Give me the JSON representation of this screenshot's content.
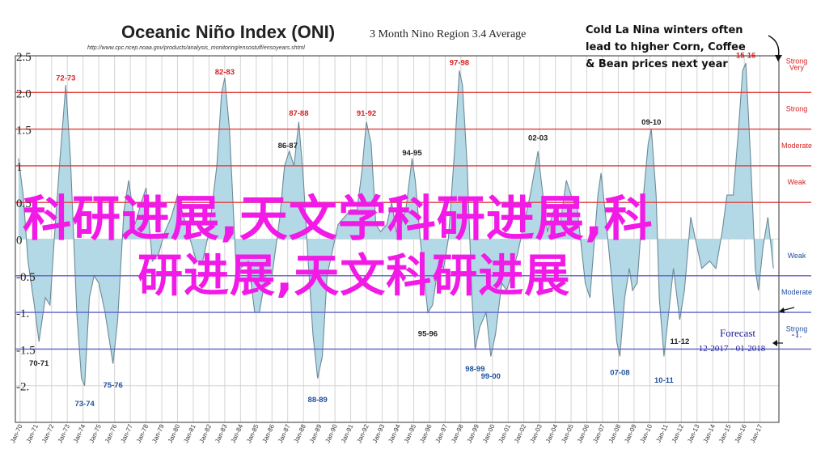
{
  "header": {
    "title": "Oceanic Niño Index (ONI)",
    "subtitle": "3 Month Nino Region 3.4 Average",
    "source_url": "http://www.cpc.ncep.noaa.gov/products/analysis_monitoring/ensostuff/ensoyears.shtml"
  },
  "callout": {
    "lines": [
      "Cold La Nina winters often",
      "lead to higher Corn, Coffee",
      "& Bean prices next year"
    ]
  },
  "watermark": {
    "line1": "科研进展,天文学科研进展,科",
    "line2": "研进展,天文科研进展"
  },
  "colors": {
    "area_fill": "#b3d9e6",
    "area_stroke": "#6d8a96",
    "el_nino_lines": "#e03c3c",
    "la_nina_lines": "#6060d0",
    "annotation_red": "#d82020",
    "annotation_blue": "#2050a0",
    "forecast": "#1a1aa0",
    "watermark": "#f21ae6"
  },
  "chart_data": {
    "type": "area",
    "title": "Oceanic Niño Index (ONI)",
    "y_axis": {
      "ylim": [
        -2.5,
        2.5
      ],
      "tick_labels": [
        "2.5",
        "2.0",
        "1.5",
        "1",
        "0.5",
        "0",
        "-0.5",
        "-1.",
        "-1.5",
        "-2."
      ]
    },
    "x_axis": {
      "xlim": [
        1969.7,
        2018.2
      ],
      "tick_labels": [
        "Jan-70",
        "Jan-71",
        "Jan-72",
        "Jan-73",
        "Jan-74",
        "Jan-75",
        "Jan-76",
        "Jan-77",
        "Jan-78",
        "Jan-79",
        "Jan-80",
        "Jan-81",
        "Jan-82",
        "Jan-83",
        "Jan-84",
        "Jan-85",
        "Jan-86",
        "Jan-87",
        "Jan-88",
        "Jan-89",
        "Jan-90",
        "Jan-91",
        "Jan-92",
        "Jan-93",
        "Jan-94",
        "Jan-95",
        "Jan-96",
        "Jan-97",
        "Jan-98",
        "Jan-99",
        "Jan-00",
        "Jan-01",
        "Jan-02",
        "Jan-03",
        "Jan-04",
        "Jan-05",
        "Jan-06",
        "Jan-07",
        "Jan-08",
        "Jan-09",
        "Jan-10",
        "Jan-11",
        "Jan-12",
        "Jan-13",
        "Jan-14",
        "Jan-15",
        "Jan-16",
        "Jan-17"
      ]
    },
    "thresholds": [
      {
        "value": 2.0,
        "label": "Very\nStrong",
        "kind": "el_nino"
      },
      {
        "value": 1.5,
        "label": "Strong",
        "kind": "el_nino"
      },
      {
        "value": 1.0,
        "label": "Moderate",
        "kind": "el_nino"
      },
      {
        "value": 0.5,
        "label": "Weak",
        "kind": "el_nino"
      },
      {
        "value": -0.5,
        "label": "Weak",
        "kind": "la_nina"
      },
      {
        "value": -1.0,
        "label": "Moderate",
        "kind": "la_nina"
      },
      {
        "value": -1.5,
        "label": "Strong",
        "kind": "la_nina"
      }
    ],
    "series": [
      {
        "values": [
          [
            1969.9,
            1.1
          ],
          [
            1970.2,
            0.6
          ],
          [
            1970.5,
            -0.3
          ],
          [
            1970.9,
            -0.9
          ],
          [
            1971.2,
            -1.4
          ],
          [
            1971.6,
            -0.8
          ],
          [
            1971.9,
            -0.9
          ],
          [
            1972.2,
            0.1
          ],
          [
            1972.5,
            1.0
          ],
          [
            1972.9,
            2.1
          ],
          [
            1973.2,
            1.1
          ],
          [
            1973.6,
            -1.0
          ],
          [
            1973.9,
            -1.9
          ],
          [
            1974.1,
            -2.0
          ],
          [
            1974.4,
            -0.8
          ],
          [
            1974.7,
            -0.5
          ],
          [
            1975.0,
            -0.6
          ],
          [
            1975.4,
            -1.0
          ],
          [
            1975.9,
            -1.7
          ],
          [
            1976.2,
            -1.1
          ],
          [
            1976.6,
            0.4
          ],
          [
            1976.9,
            0.8
          ],
          [
            1977.3,
            0.2
          ],
          [
            1977.7,
            0.5
          ],
          [
            1978.0,
            0.7
          ],
          [
            1978.4,
            -0.3
          ],
          [
            1978.8,
            -0.2
          ],
          [
            1979.2,
            0.1
          ],
          [
            1979.6,
            0.3
          ],
          [
            1980.0,
            0.6
          ],
          [
            1980.4,
            0.3
          ],
          [
            1980.8,
            0.0
          ],
          [
            1981.2,
            -0.3
          ],
          [
            1981.6,
            -0.3
          ],
          [
            1982.0,
            0.1
          ],
          [
            1982.5,
            1.0
          ],
          [
            1982.8,
            2.0
          ],
          [
            1983.0,
            2.2
          ],
          [
            1983.3,
            1.5
          ],
          [
            1983.7,
            -0.3
          ],
          [
            1984.0,
            -0.4
          ],
          [
            1984.5,
            -0.3
          ],
          [
            1984.9,
            -1.0
          ],
          [
            1985.2,
            -1.0
          ],
          [
            1985.6,
            -0.5
          ],
          [
            1986.0,
            -0.5
          ],
          [
            1986.5,
            0.3
          ],
          [
            1986.8,
            1.0
          ],
          [
            1987.1,
            1.2
          ],
          [
            1987.4,
            1.0
          ],
          [
            1987.7,
            1.6
          ],
          [
            1988.0,
            0.8
          ],
          [
            1988.3,
            -0.3
          ],
          [
            1988.6,
            -1.3
          ],
          [
            1988.9,
            -1.9
          ],
          [
            1989.2,
            -1.6
          ],
          [
            1989.5,
            -0.5
          ],
          [
            1989.8,
            -0.2
          ],
          [
            1990.2,
            0.2
          ],
          [
            1990.6,
            0.3
          ],
          [
            1991.0,
            0.4
          ],
          [
            1991.4,
            0.4
          ],
          [
            1991.7,
            0.9
          ],
          [
            1992.0,
            1.6
          ],
          [
            1992.3,
            1.3
          ],
          [
            1992.6,
            0.2
          ],
          [
            1992.9,
            0.1
          ],
          [
            1993.3,
            0.2
          ],
          [
            1993.6,
            0.5
          ],
          [
            1993.9,
            0.1
          ],
          [
            1994.2,
            0.2
          ],
          [
            1994.5,
            0.4
          ],
          [
            1994.9,
            1.1
          ],
          [
            1995.1,
            0.8
          ],
          [
            1995.5,
            -0.2
          ],
          [
            1995.9,
            -1.0
          ],
          [
            1996.2,
            -0.9
          ],
          [
            1996.6,
            -0.3
          ],
          [
            1996.9,
            -0.4
          ],
          [
            1997.2,
            0.0
          ],
          [
            1997.6,
            1.2
          ],
          [
            1997.9,
            2.3
          ],
          [
            1998.1,
            2.1
          ],
          [
            1998.4,
            1.0
          ],
          [
            1998.7,
            -0.8
          ],
          [
            1998.9,
            -1.5
          ],
          [
            1999.2,
            -1.2
          ],
          [
            1999.6,
            -1.0
          ],
          [
            1999.9,
            -1.6
          ],
          [
            2000.2,
            -1.3
          ],
          [
            2000.6,
            -0.6
          ],
          [
            2000.9,
            -0.7
          ],
          [
            2001.2,
            -0.5
          ],
          [
            2001.6,
            -0.2
          ],
          [
            2002.0,
            0.2
          ],
          [
            2002.4,
            0.6
          ],
          [
            2002.9,
            1.2
          ],
          [
            2003.1,
            0.8
          ],
          [
            2003.5,
            0.1
          ],
          [
            2003.9,
            0.4
          ],
          [
            2004.3,
            0.2
          ],
          [
            2004.7,
            0.8
          ],
          [
            2005.0,
            0.6
          ],
          [
            2005.4,
            0.4
          ],
          [
            2005.9,
            -0.6
          ],
          [
            2006.2,
            -0.8
          ],
          [
            2006.7,
            0.6
          ],
          [
            2006.9,
            0.9
          ],
          [
            2007.2,
            0.3
          ],
          [
            2007.6,
            -0.6
          ],
          [
            2007.9,
            -1.4
          ],
          [
            2008.1,
            -1.6
          ],
          [
            2008.4,
            -0.8
          ],
          [
            2008.7,
            -0.4
          ],
          [
            2008.9,
            -0.7
          ],
          [
            2009.2,
            -0.6
          ],
          [
            2009.6,
            0.6
          ],
          [
            2009.9,
            1.3
          ],
          [
            2010.1,
            1.5
          ],
          [
            2010.4,
            0.6
          ],
          [
            2010.6,
            -0.8
          ],
          [
            2010.9,
            -1.6
          ],
          [
            2011.2,
            -1.0
          ],
          [
            2011.5,
            -0.4
          ],
          [
            2011.9,
            -1.1
          ],
          [
            2012.2,
            -0.7
          ],
          [
            2012.6,
            0.3
          ],
          [
            2012.9,
            0.0
          ],
          [
            2013.3,
            -0.4
          ],
          [
            2013.8,
            -0.3
          ],
          [
            2014.2,
            -0.4
          ],
          [
            2014.6,
            0.1
          ],
          [
            2014.9,
            0.6
          ],
          [
            2015.3,
            0.6
          ],
          [
            2015.6,
            1.4
          ],
          [
            2015.9,
            2.3
          ],
          [
            2016.1,
            2.4
          ],
          [
            2016.4,
            1.1
          ],
          [
            2016.7,
            -0.4
          ],
          [
            2016.9,
            -0.7
          ],
          [
            2017.2,
            -0.1
          ],
          [
            2017.5,
            0.3
          ],
          [
            2017.7,
            -0.1
          ],
          [
            2017.85,
            -0.4
          ]
        ]
      }
    ],
    "event_labels": [
      {
        "text": "72-73",
        "x": 1972.9,
        "y": 2.12,
        "kind": "el_nino"
      },
      {
        "text": "82-83",
        "x": 1983.0,
        "y": 2.2,
        "kind": "el_nino"
      },
      {
        "text": "87-88",
        "x": 1987.7,
        "y": 1.64,
        "kind": "el_nino"
      },
      {
        "text": "91-92",
        "x": 1992.0,
        "y": 1.64,
        "kind": "el_nino"
      },
      {
        "text": "97-98",
        "x": 1997.9,
        "y": 2.33,
        "kind": "el_nino"
      },
      {
        "text": "15-16",
        "x": 2016.1,
        "y": 2.43,
        "kind": "el_nino"
      },
      {
        "text": "86-87",
        "x": 1987.0,
        "y": 1.2,
        "kind": "neutral"
      },
      {
        "text": "94-95",
        "x": 1994.9,
        "y": 1.1,
        "kind": "neutral"
      },
      {
        "text": "02-03",
        "x": 2002.9,
        "y": 1.3,
        "kind": "neutral"
      },
      {
        "text": "09-10",
        "x": 2010.1,
        "y": 1.52,
        "kind": "neutral"
      },
      {
        "text": "70-71",
        "x": 1971.2,
        "y": -1.55,
        "kind": "la_nina"
      },
      {
        "text": "73-74",
        "x": 1974.1,
        "y": -2.1,
        "kind": "la_nina"
      },
      {
        "text": "75-76",
        "x": 1975.9,
        "y": -1.85,
        "kind": "la_nina"
      },
      {
        "text": "88-89",
        "x": 1988.9,
        "y": -2.05,
        "kind": "la_nina"
      },
      {
        "text": "95-96",
        "x": 1995.9,
        "y": -1.15,
        "kind": "la_nina"
      },
      {
        "text": "98-99",
        "x": 1998.9,
        "y": -1.63,
        "kind": "la_nina"
      },
      {
        "text": "99-00",
        "x": 1999.9,
        "y": -1.73,
        "kind": "la_nina"
      },
      {
        "text": "07-08",
        "x": 2008.1,
        "y": -1.68,
        "kind": "la_nina"
      },
      {
        "text": "10-11",
        "x": 2010.9,
        "y": -1.78,
        "kind": "la_nina"
      },
      {
        "text": "11-12",
        "x": 2011.9,
        "y": -1.25,
        "kind": "la_nina"
      }
    ],
    "forecast": {
      "label": "Forecast",
      "period": "12-2017 - 01-2018",
      "value_label": "-1.",
      "value": -1.0
    },
    "grid": true
  }
}
